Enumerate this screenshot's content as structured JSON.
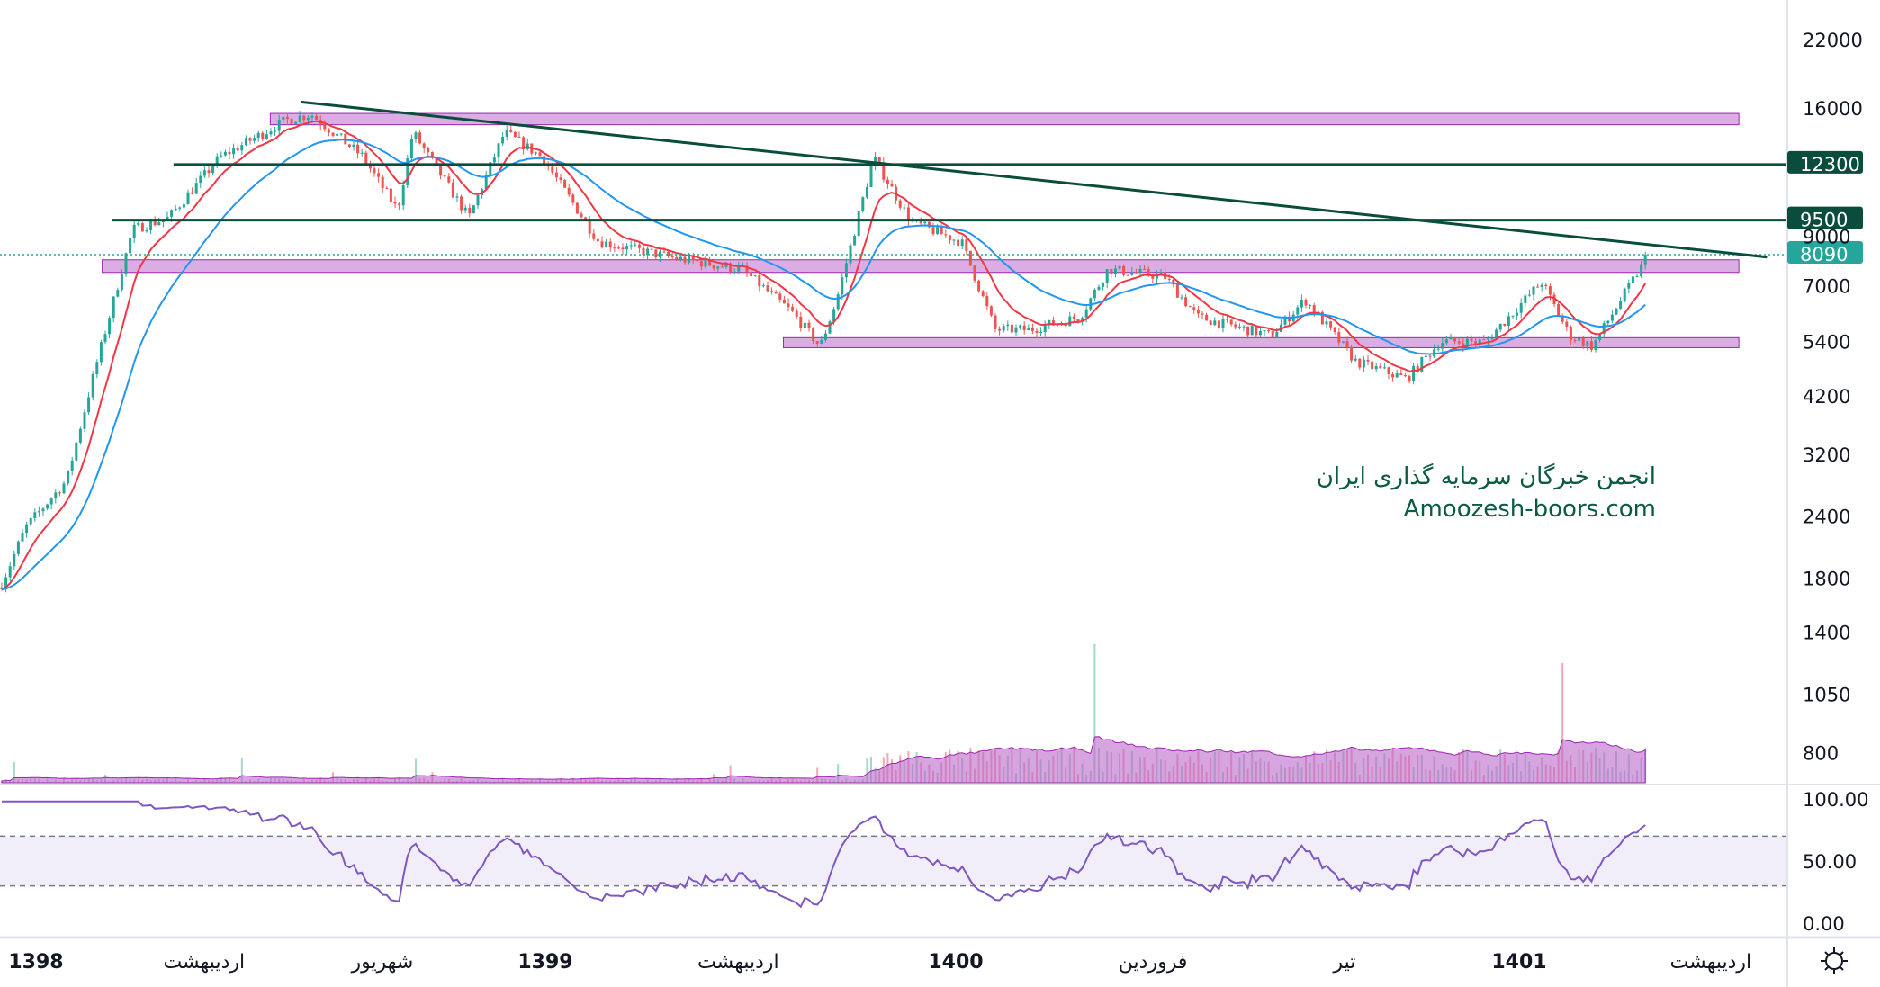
{
  "chart_data": {
    "type": "candlestick",
    "y_scale": "log",
    "price_axis_ticks": [
      "22000",
      "16000",
      "9000",
      "7000",
      "5400",
      "4200",
      "3200",
      "2400",
      "1800",
      "1400",
      "1050",
      "800"
    ],
    "rsi_axis_ticks": [
      "100.00",
      "50.00",
      "0.00"
    ],
    "time_axis_labels": [
      {
        "text": "1398",
        "year": 1398.0,
        "bold": true
      },
      {
        "text": "اردیبهشت",
        "year": 1398.33,
        "bold": false
      },
      {
        "text": "شهریور",
        "year": 1398.68,
        "bold": false
      },
      {
        "text": "1399",
        "year": 1399.0,
        "bold": true
      },
      {
        "text": "اردیبهشت",
        "year": 1399.47,
        "bold": false
      },
      {
        "text": "1400",
        "year": 1400.0,
        "bold": true
      },
      {
        "text": "فروردین",
        "year": 1400.35,
        "bold": false
      },
      {
        "text": "تیر",
        "year": 1400.69,
        "bold": false
      },
      {
        "text": "1401",
        "year": 1401.0,
        "bold": true
      },
      {
        "text": "اردیبهشت",
        "year": 1401.34,
        "bold": false
      }
    ],
    "price_path": [
      [
        1397.93,
        1723
      ],
      [
        1397.98,
        2280
      ],
      [
        1398.06,
        2830
      ],
      [
        1398.12,
        4920
      ],
      [
        1398.19,
        9100
      ],
      [
        1398.26,
        9600
      ],
      [
        1398.36,
        12700
      ],
      [
        1398.49,
        15100
      ],
      [
        1398.54,
        15550
      ],
      [
        1398.64,
        12800
      ],
      [
        1398.71,
        9950
      ],
      [
        1398.74,
        14300
      ],
      [
        1398.85,
        9600
      ],
      [
        1398.92,
        14300
      ],
      [
        1398.99,
        12800
      ],
      [
        1399.13,
        8600
      ],
      [
        1399.31,
        7980
      ],
      [
        1399.48,
        7550
      ],
      [
        1399.6,
        6200
      ],
      [
        1399.67,
        5280
      ],
      [
        1399.71,
        6570
      ],
      [
        1399.8,
        12700
      ],
      [
        1399.89,
        9450
      ],
      [
        1400.01,
        8600
      ],
      [
        1400.07,
        5710
      ],
      [
        1400.13,
        5710
      ],
      [
        1400.22,
        6050
      ],
      [
        1400.27,
        7550
      ],
      [
        1400.37,
        7320
      ],
      [
        1400.43,
        6050
      ],
      [
        1400.56,
        5550
      ],
      [
        1400.62,
        6570
      ],
      [
        1400.71,
        4920
      ],
      [
        1400.8,
        4540
      ],
      [
        1400.86,
        5400
      ],
      [
        1400.94,
        5400
      ],
      [
        1401.04,
        7130
      ],
      [
        1401.09,
        5550
      ],
      [
        1401.13,
        5280
      ],
      [
        1401.2,
        7130
      ],
      [
        1401.23,
        8090
      ]
    ],
    "last_price": "8090",
    "horizontal_levels": [
      {
        "price": 12300,
        "label": "12300",
        "color": "#0b4d3c"
      },
      {
        "price": 9500,
        "label": "9500",
        "color": "#0b4d3c"
      }
    ],
    "supply_demand_zones": [
      {
        "from_year": 1398.46,
        "to_year": 1401.39,
        "low": 14800,
        "high": 15600
      },
      {
        "from_year": 1398.13,
        "to_year": 1401.39,
        "low": 7450,
        "high": 7900
      },
      {
        "from_year": 1399.58,
        "to_year": 1401.39,
        "low": 5250,
        "high": 5500
      }
    ],
    "trendline": {
      "from": [
        1398.52,
        16450
      ],
      "to": [
        1401.44,
        8000
      ]
    },
    "indicators": [
      "EMA short (red)",
      "EMA long (blue)",
      "Volume",
      "RSI"
    ],
    "rsi_bands": [
      30,
      70
    ],
    "colors": {
      "up": "#26a69a",
      "down": "#ef5350",
      "ema_short": "#f23645",
      "ema_long": "#2196f3",
      "zone": "#ce93d8",
      "level": "#0b4d3c",
      "last": "#26a69a",
      "rsi": "#7e57c2"
    }
  },
  "watermark": {
    "line1": "انجمن خبرگان سرمایه گذاری ایران",
    "line2": "Amoozesh-boors.com"
  }
}
